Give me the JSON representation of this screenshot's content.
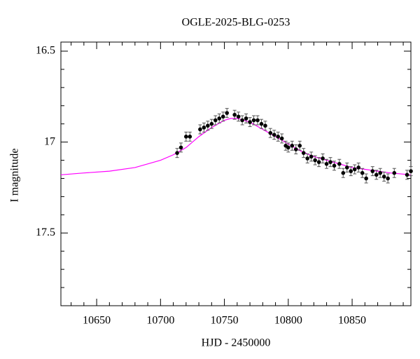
{
  "chart_data": {
    "type": "scatter",
    "title": "OGLE-2025-BLG-0253",
    "x_label": "HJD - 2450000",
    "y_label": "I magnitude",
    "xlim": [
      10622,
      10896
    ],
    "ylim": [
      17.9,
      16.45
    ],
    "xticks": [
      10650,
      10700,
      10750,
      10800,
      10850
    ],
    "yticks": [
      16.5,
      17,
      17.5
    ],
    "x_minor_ticks": [
      10630,
      10640,
      10660,
      10670,
      10680,
      10690,
      10710,
      10720,
      10730,
      10740,
      10760,
      10770,
      10780,
      10790,
      10810,
      10820,
      10830,
      10840,
      10860,
      10870,
      10880,
      10890
    ],
    "y_minor_ticks": [
      16.6,
      16.7,
      16.8,
      16.9,
      17.1,
      17.2,
      17.3,
      17.4,
      17.6,
      17.7,
      17.8
    ],
    "series": [
      {
        "color": "#000000",
        "x": [
          10713,
          10716,
          10720,
          10723,
          10731,
          10734,
          10737,
          10740,
          10743,
          10746,
          10749,
          10752,
          10758,
          10761,
          10764,
          10767,
          10770,
          10773,
          10776,
          10779,
          10782,
          10786,
          10789,
          10792,
          10795,
          10798,
          10800,
          10803,
          10806,
          10809,
          10812,
          10815,
          10818,
          10821,
          10824,
          10827,
          10830,
          10833,
          10836,
          10840,
          10843,
          10846,
          10849,
          10852,
          10855,
          10858,
          10861,
          10866,
          10869,
          10872,
          10875,
          10878,
          10883,
          10893,
          10896
        ],
        "values": [
          17.06,
          17.03,
          16.97,
          16.97,
          16.93,
          16.92,
          16.91,
          16.9,
          16.88,
          16.87,
          16.86,
          16.84,
          16.85,
          16.86,
          16.88,
          16.87,
          16.89,
          16.88,
          16.88,
          16.9,
          16.91,
          16.95,
          16.96,
          16.97,
          16.98,
          17.02,
          17.03,
          17.02,
          17.04,
          17.02,
          17.06,
          17.09,
          17.08,
          17.1,
          17.11,
          17.09,
          17.12,
          17.11,
          17.13,
          17.12,
          17.17,
          17.14,
          17.16,
          17.15,
          17.14,
          17.17,
          17.2,
          17.16,
          17.18,
          17.17,
          17.19,
          17.2,
          17.17,
          17.18,
          17.16
        ],
        "errors": [
          0.025,
          0.025,
          0.025,
          0.025,
          0.025,
          0.025,
          0.025,
          0.025,
          0.025,
          0.025,
          0.025,
          0.025,
          0.025,
          0.025,
          0.025,
          0.025,
          0.025,
          0.025,
          0.025,
          0.025,
          0.025,
          0.025,
          0.025,
          0.025,
          0.025,
          0.025,
          0.025,
          0.025,
          0.025,
          0.025,
          0.025,
          0.025,
          0.025,
          0.025,
          0.025,
          0.025,
          0.025,
          0.025,
          0.025,
          0.025,
          0.025,
          0.025,
          0.025,
          0.025,
          0.025,
          0.025,
          0.025,
          0.025,
          0.025,
          0.025,
          0.025,
          0.025,
          0.025,
          0.025,
          0.025
        ]
      },
      {
        "type": "line",
        "color": "#ff00ff",
        "x": [
          10622,
          10640,
          10660,
          10680,
          10700,
          10710,
          10720,
          10730,
          10740,
          10750,
          10755,
          10760,
          10770,
          10780,
          10790,
          10800,
          10810,
          10820,
          10830,
          10840,
          10850,
          10860,
          10870,
          10880,
          10896
        ],
        "values": [
          17.18,
          17.17,
          17.16,
          17.14,
          17.1,
          17.07,
          17.03,
          16.97,
          16.92,
          16.88,
          16.87,
          16.87,
          16.89,
          16.93,
          16.97,
          17.01,
          17.05,
          17.08,
          17.1,
          17.12,
          17.14,
          17.15,
          17.16,
          17.17,
          17.18
        ]
      }
    ]
  }
}
